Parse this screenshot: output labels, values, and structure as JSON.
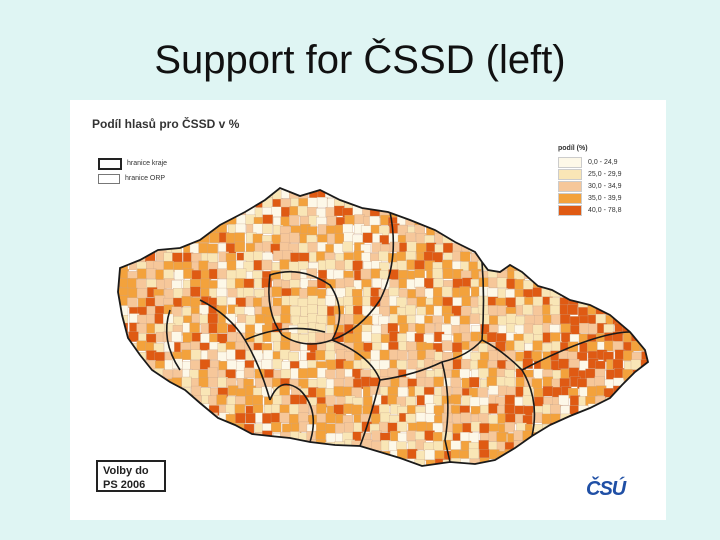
{
  "slide": {
    "title": "Support for ČSSD (left)"
  },
  "map": {
    "title": "Podíl hlasů pro ČSSD v %",
    "border_legend": [
      {
        "label": "hranice kraje",
        "icon": "thick-border-swatch"
      },
      {
        "label": "hranice ORP",
        "icon": "thin-border-swatch"
      }
    ],
    "share_legend": {
      "title": "podíl (%)",
      "classes": [
        {
          "label": "0,0 - 24,9",
          "color": "#fdf8e8"
        },
        {
          "label": "25,0 - 29,9",
          "color": "#f9e6b6"
        },
        {
          "label": "30,0 - 34,9",
          "color": "#f6c79a"
        },
        {
          "label": "35,0 - 39,9",
          "color": "#f3a23c"
        },
        {
          "label": "40,0 - 78,8",
          "color": "#df5a13"
        }
      ]
    },
    "election": {
      "line1": "Volby do",
      "line2": "PS 2006"
    },
    "logo": "ČSÚ"
  }
}
